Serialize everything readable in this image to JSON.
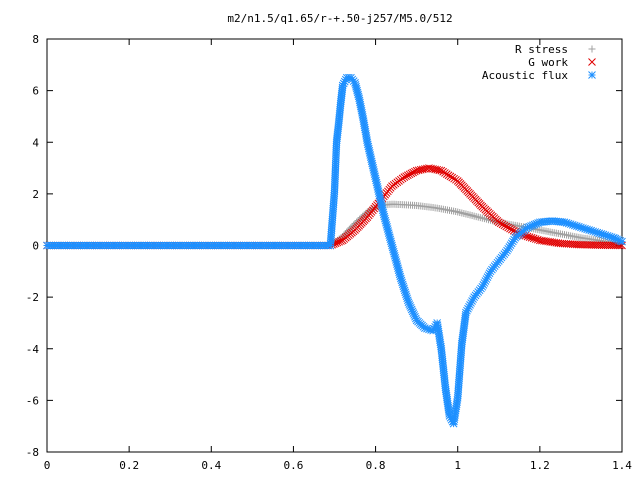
{
  "chart_data": {
    "type": "scatter",
    "title": "m2/n1.5/q1.65/r-+.50-j257/M5.0/512",
    "xlabel": "",
    "ylabel": "",
    "xlim": [
      0,
      1.4
    ],
    "ylim": [
      -8,
      8
    ],
    "x_ticks": [
      "0",
      "0.2",
      "0.4",
      "0.6",
      "0.8",
      "1",
      "1.2",
      "1.4"
    ],
    "y_ticks": [
      "-8",
      "-6",
      "-4",
      "-2",
      "0",
      "2",
      "4",
      "6",
      "8"
    ],
    "grid": false,
    "legend_position": "top-right",
    "series": [
      {
        "name": "R stress",
        "marker": "plus",
        "color": "#a0a0a0",
        "x": [
          0.0,
          0.1,
          0.2,
          0.3,
          0.4,
          0.5,
          0.6,
          0.69,
          0.72,
          0.75,
          0.78,
          0.81,
          0.84,
          0.87,
          0.9,
          0.95,
          1.0,
          1.05,
          1.1,
          1.15,
          1.2,
          1.25,
          1.3,
          1.35,
          1.4
        ],
        "y": [
          0.0,
          0.0,
          0.0,
          0.0,
          0.0,
          0.0,
          0.0,
          0.0,
          0.35,
          0.85,
          1.3,
          1.55,
          1.6,
          1.58,
          1.55,
          1.45,
          1.3,
          1.1,
          0.9,
          0.75,
          0.6,
          0.45,
          0.3,
          0.18,
          0.05
        ]
      },
      {
        "name": "G work",
        "marker": "cross",
        "color": "#e00000",
        "x": [
          0.0,
          0.1,
          0.2,
          0.3,
          0.4,
          0.5,
          0.6,
          0.69,
          0.72,
          0.75,
          0.78,
          0.81,
          0.84,
          0.87,
          0.9,
          0.93,
          0.96,
          1.0,
          1.03,
          1.06,
          1.1,
          1.15,
          1.2,
          1.25,
          1.3,
          1.35,
          1.4
        ],
        "y": [
          0.0,
          0.0,
          0.0,
          0.0,
          0.0,
          0.0,
          0.0,
          0.0,
          0.2,
          0.6,
          1.1,
          1.7,
          2.3,
          2.65,
          2.9,
          3.0,
          2.9,
          2.5,
          2.0,
          1.5,
          0.9,
          0.45,
          0.2,
          0.08,
          0.03,
          0.01,
          0.0
        ]
      },
      {
        "name": "Acoustic flux",
        "marker": "star",
        "color": "#1e90ff",
        "x": [
          0.0,
          0.1,
          0.2,
          0.3,
          0.4,
          0.5,
          0.6,
          0.69,
          0.7,
          0.705,
          0.71,
          0.715,
          0.72,
          0.73,
          0.74,
          0.75,
          0.76,
          0.77,
          0.78,
          0.8,
          0.82,
          0.84,
          0.86,
          0.88,
          0.9,
          0.92,
          0.94,
          0.95,
          0.96,
          0.97,
          0.98,
          0.99,
          1.0,
          1.01,
          1.02,
          1.04,
          1.06,
          1.08,
          1.1,
          1.12,
          1.14,
          1.17,
          1.2,
          1.23,
          1.26,
          1.3,
          1.34,
          1.38,
          1.4
        ],
        "y": [
          0.0,
          0.0,
          0.0,
          0.0,
          0.0,
          0.0,
          0.0,
          0.0,
          2.1,
          4.0,
          4.7,
          5.5,
          6.2,
          6.5,
          6.5,
          6.3,
          5.7,
          4.9,
          4.0,
          2.6,
          1.2,
          0.0,
          -1.2,
          -2.2,
          -2.9,
          -3.2,
          -3.3,
          -3.0,
          -4.0,
          -5.5,
          -6.6,
          -6.9,
          -5.9,
          -3.8,
          -2.6,
          -2.0,
          -1.6,
          -1.0,
          -0.6,
          -0.2,
          0.3,
          0.7,
          0.9,
          0.95,
          0.9,
          0.7,
          0.5,
          0.3,
          0.15
        ]
      }
    ]
  }
}
